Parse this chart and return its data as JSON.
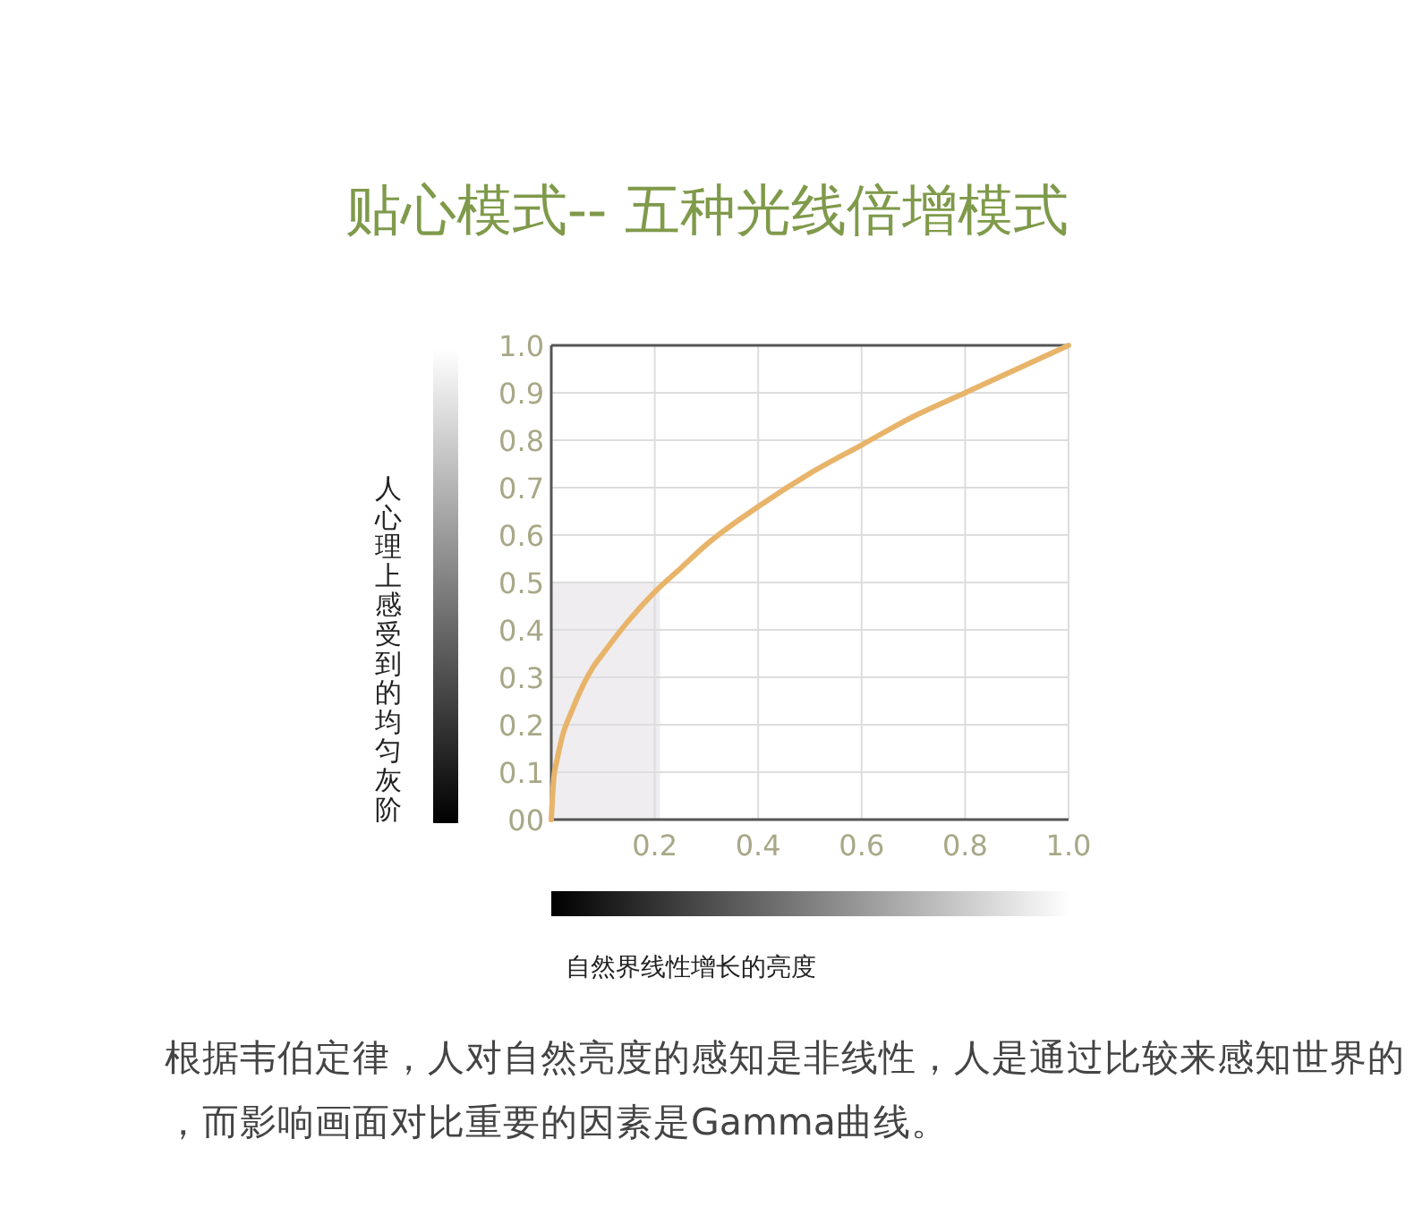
{
  "chart_data": {
    "type": "line",
    "title": "贴心模式-- 五种光线倍增模式",
    "xlabel": "自然界线性增长的亮度",
    "ylabel": "人心理上感受到的均匀灰阶",
    "annotations": [
      "根据韦伯定律，人对自然亮度的感知是非线性，人是通过比较来感知世界的，而影响画面对比重要的因素是Gamma曲线。"
    ],
    "xlim": [
      0,
      1
    ],
    "ylim": [
      0,
      1
    ],
    "xticks": [
      0.2,
      0.4,
      0.6,
      0.8,
      {
        "value": 1,
        "label": "1.0"
      }
    ],
    "yticks": [
      {
        "value": 0,
        "label": "00"
      },
      0.1,
      0.2,
      0.3,
      0.4,
      0.5,
      0.6,
      0.7,
      0.8,
      0.9,
      {
        "value": 1,
        "label": "1.0"
      }
    ],
    "grid": true,
    "marker": "none",
    "line_style": "solid",
    "series": [
      {
        "type": "area",
        "color": "#efedf0",
        "x": [
          0,
          0.21
        ],
        "values": [
          0.5,
          0.5
        ]
      },
      {
        "color": "#e8b46a",
        "x": [
          0,
          0.005,
          0.01,
          0.02,
          0.04,
          0.06,
          0.08,
          0.1,
          0.15,
          0.2,
          0.25,
          0.3,
          0.4,
          0.5,
          0.6,
          0.7,
          0.8,
          0.9,
          1.0
        ],
        "values": [
          0,
          0.09,
          0.12,
          0.17,
          0.23,
          0.28,
          0.32,
          0.35,
          0.42,
          0.48,
          0.53,
          0.58,
          0.66,
          0.73,
          0.79,
          0.85,
          0.9,
          0.95,
          1.0
        ]
      }
    ]
  }
}
